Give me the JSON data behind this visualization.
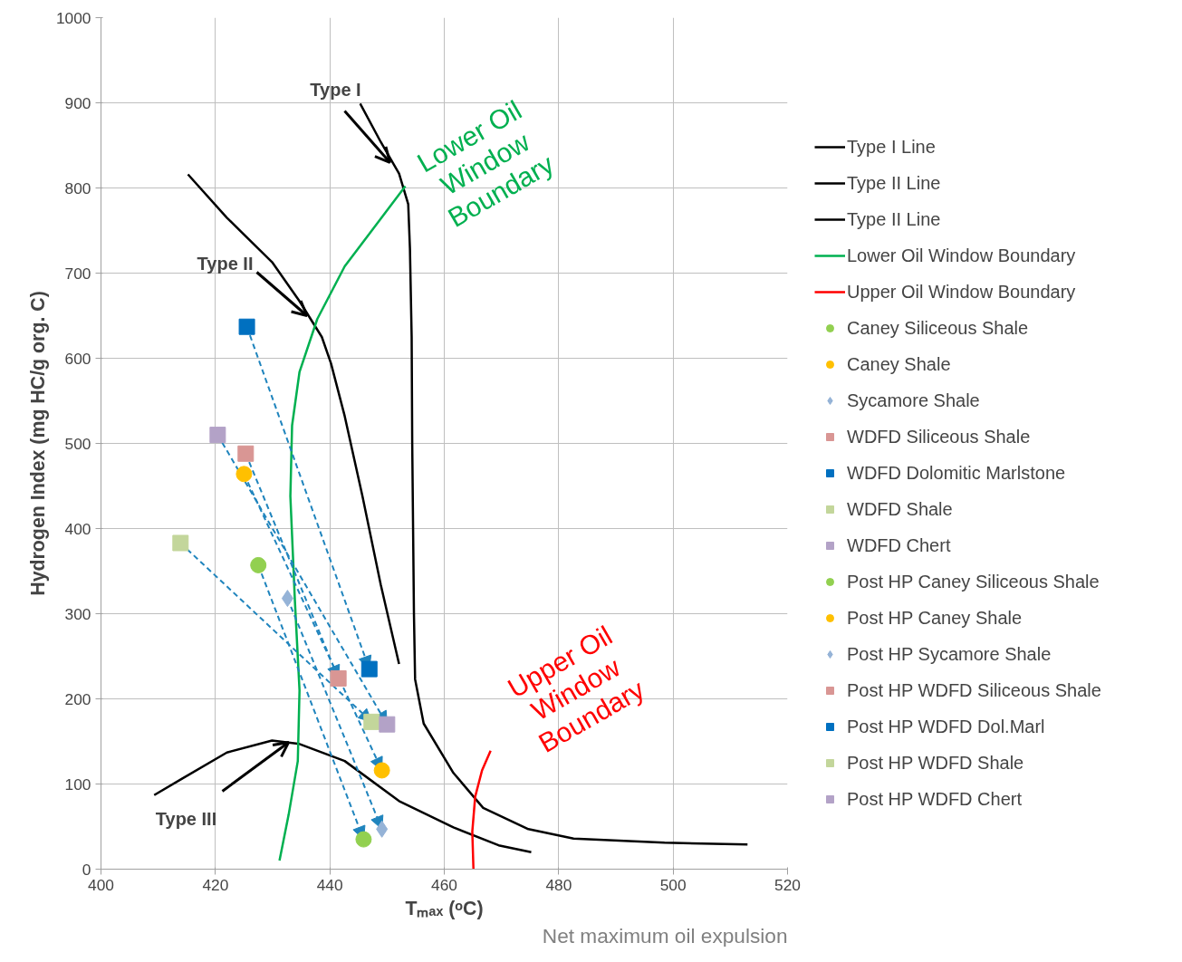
{
  "chart_data": {
    "type": "scatter",
    "xlabel": "Tₘₐₓ (ᵒC)",
    "ylabel": "Hydrogen Index (mg HC/g org. C)",
    "xlim": [
      400,
      520
    ],
    "xticks": [
      400,
      420,
      440,
      460,
      480,
      500,
      520
    ],
    "ylim": [
      0,
      1000
    ],
    "yticks": [
      0,
      100,
      200,
      300,
      400,
      500,
      600,
      700,
      800,
      900,
      1000
    ],
    "grid": true,
    "legend": "right",
    "series": [
      {
        "name": "Type I Line",
        "type": "line",
        "color": "#000000",
        "x": [
          445.3,
          448.9,
          452.1,
          453.7,
          454.0,
          454.3,
          454.4,
          454.7,
          454.9,
          456.4,
          461.6,
          466.8,
          474.7,
          482.6,
          498.5,
          513.0
        ],
        "values": [
          899,
          854,
          817,
          781,
          729,
          625,
          500,
          300,
          223,
          171,
          113,
          72,
          47,
          36,
          31,
          29
        ]
      },
      {
        "name": "Type II Line",
        "type": "line",
        "color": "#000000",
        "x": [
          415.2,
          422.0,
          429.9,
          434.7,
          438.6,
          440.2,
          442.6,
          445.7,
          448.9,
          452.1
        ],
        "values": [
          816,
          765,
          713,
          667,
          625,
          594,
          532,
          438,
          334,
          241
        ]
      },
      {
        "name": "Type II Line",
        "type": "line",
        "color": "#000000",
        "x": [
          409.3,
          414.1,
          422.0,
          429.9,
          434.7,
          442.6,
          452.1,
          461.6,
          469.5,
          475.2
        ],
        "values": [
          87,
          106,
          137,
          151,
          147,
          127,
          80,
          49,
          28,
          20
        ]
      },
      {
        "name": "Lower Oil Window Boundary",
        "type": "line",
        "color": "#00b050",
        "x": [
          431.2,
          432.8,
          434.4,
          434.7,
          433.9,
          433.1,
          433.4,
          434.7,
          437.8,
          442.6,
          453.2
        ],
        "values": [
          10,
          64,
          127,
          210,
          314,
          438,
          521,
          584,
          646,
          708,
          802
        ]
      },
      {
        "name": "Upper Oil Window Boundary",
        "type": "line",
        "color": "#ff0000",
        "x": [
          465.1,
          464.9,
          465.4,
          466.6,
          468.1
        ],
        "values": [
          0,
          44,
          85,
          116,
          139
        ]
      },
      {
        "name": "Caney Siliceous Shale",
        "marker": "circle",
        "color": "#92d050",
        "x": [
          427.5
        ],
        "values": [
          357
        ]
      },
      {
        "name": "Caney Shale",
        "marker": "circle",
        "color": "#ffc000",
        "x": [
          425.0
        ],
        "values": [
          464
        ]
      },
      {
        "name": "Sycamore Shale",
        "marker": "diamond",
        "color": "#95b3d7",
        "x": [
          432.6
        ],
        "values": [
          318
        ]
      },
      {
        "name": "WDFD Siliceous Shale",
        "marker": "square",
        "color": "#d99694",
        "x": [
          425.3
        ],
        "values": [
          488
        ]
      },
      {
        "name": "WDFD Dolomitic Marlstone",
        "marker": "square",
        "color": "#0070c0",
        "x": [
          425.5
        ],
        "values": [
          637
        ]
      },
      {
        "name": "WDFD Shale",
        "marker": "square",
        "color": "#c3d69b",
        "x": [
          413.9
        ],
        "values": [
          383
        ]
      },
      {
        "name": "WDFD Chert",
        "marker": "square",
        "color": "#b3a2c7",
        "x": [
          420.4
        ],
        "values": [
          510
        ]
      },
      {
        "name": "Post HP Caney Siliceous Shale",
        "marker": "circle",
        "color": "#92d050",
        "x": [
          445.9
        ],
        "values": [
          35
        ]
      },
      {
        "name": "Post HP Caney Shale",
        "marker": "circle",
        "color": "#ffc000",
        "x": [
          449.1
        ],
        "values": [
          116
        ]
      },
      {
        "name": "Post HP Sycamore Shale",
        "marker": "diamond",
        "color": "#95b3d7",
        "x": [
          449.1
        ],
        "values": [
          47
        ]
      },
      {
        "name": "Post HP WDFD Siliceous Shale",
        "marker": "square",
        "color": "#d99694",
        "x": [
          441.5
        ],
        "values": [
          224
        ]
      },
      {
        "name": "Post HP WDFD Dol.Marl",
        "marker": "square",
        "color": "#0070c0",
        "x": [
          446.9
        ],
        "values": [
          235
        ]
      },
      {
        "name": "Post HP WDFD Shale",
        "marker": "square",
        "color": "#c3d69b",
        "x": [
          447.3
        ],
        "values": [
          173
        ]
      },
      {
        "name": "Post HP WDFD Chert",
        "marker": "square",
        "color": "#b3a2c7",
        "x": [
          450.0
        ],
        "values": [
          170
        ]
      }
    ],
    "annotations": [
      {
        "text": "Type I",
        "x": 450.5,
        "y": 830
      },
      {
        "text": "Type II",
        "x": 436.0,
        "y": 650
      },
      {
        "text": "Type III",
        "x": 432.8,
        "y": 149
      },
      "Lower Oil\nWindow\nBoundary",
      "Upper Oil\nWindow\nBoundary",
      "Net maximum oil expulsion"
    ]
  }
}
